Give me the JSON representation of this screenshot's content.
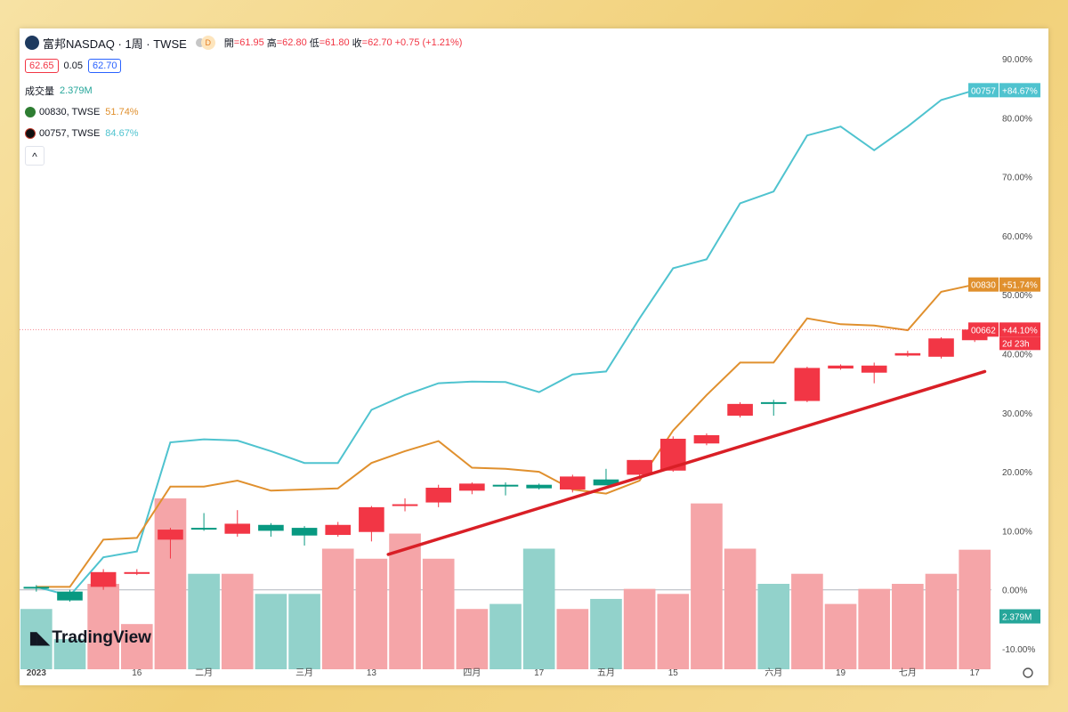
{
  "header": {
    "symbol_name": "富邦NASDAQ · 1周 · TWSE",
    "interval_badge": "D",
    "ohlc": {
      "open_label": "開",
      "open": "=61.95",
      "high_label": "高",
      "high": "=62.80",
      "low_label": "低",
      "low": "=61.80",
      "close_label": "收",
      "close": "=62.70",
      "change": "+0.75 (+1.21%)"
    },
    "bid": "62.65",
    "spread": "0.05",
    "ask": "62.70"
  },
  "legend": {
    "volume_label": "成交量",
    "volume_value": "2.379M",
    "comparisons": [
      {
        "name": "00830, TWSE",
        "value": "51.74%",
        "color": "#e0902e"
      },
      {
        "name": "00757, TWSE",
        "value": "84.67%",
        "color": "#4fc3cf"
      }
    ],
    "collapse_symbol": "^"
  },
  "watermark": "TradingView",
  "colors": {
    "up": "#f23645",
    "down": "#089981",
    "vol_up": "#f5a5a8",
    "vol_down": "#92d2cb",
    "line_00757": "#4fc3cf",
    "line_00830": "#e0902e",
    "trend": "#d91f26"
  },
  "chart_data": {
    "type": "line",
    "y_unit": "%",
    "ylim": [
      -10,
      90
    ],
    "y_ticks": [
      "90.00%",
      "80.00%",
      "70.00%",
      "60.00%",
      "50.00%",
      "40.00%",
      "30.00%",
      "20.00%",
      "10.00%",
      "0.00%",
      "-10.00%"
    ],
    "x_ticks": [
      "2023",
      "16",
      "二月",
      "三月",
      "13",
      "四月",
      "17",
      "五月",
      "15",
      "六月",
      "19",
      "七月",
      "17"
    ],
    "series": [
      {
        "name": "00757",
        "last_label": "+84.67%",
        "values": [
          0.5,
          -1,
          5.5,
          6.5,
          25,
          25.5,
          25.3,
          23.5,
          21.5,
          21.5,
          30.5,
          33,
          35,
          35.3,
          35.2,
          33.5,
          36.5,
          37,
          46,
          54.5,
          56,
          65.5,
          67.5,
          77,
          78.5,
          74.5,
          78.5,
          83,
          84.67
        ]
      },
      {
        "name": "00830",
        "last_label": "+51.74%",
        "values": [
          0.5,
          0.5,
          8.5,
          8.8,
          17.5,
          17.5,
          18.5,
          16.8,
          17,
          17.2,
          21.5,
          23.5,
          25.2,
          20.7,
          20.5,
          20,
          17,
          16.3,
          18.5,
          27,
          33,
          38.5,
          38.5,
          46,
          45,
          44.8,
          44,
          50.5,
          51.74
        ]
      }
    ],
    "candles": {
      "name": "00662",
      "last_label": "+44.10%",
      "countdown": "2d 23h",
      "ohlc": [
        [
          0.5,
          0.8,
          -0.3,
          0.2
        ],
        [
          -0.3,
          0,
          -2,
          -1.8
        ],
        [
          0.5,
          3.5,
          0,
          3
        ],
        [
          3,
          3.5,
          2.5,
          3
        ],
        [
          8.5,
          10.5,
          5.3,
          10.2
        ],
        [
          10.5,
          13,
          10,
          10.2
        ],
        [
          9.5,
          13.5,
          9,
          11.2
        ],
        [
          11,
          11.3,
          9,
          10
        ],
        [
          10.5,
          10.8,
          7.5,
          9.2
        ],
        [
          9.3,
          11.5,
          9,
          11
        ],
        [
          9.8,
          14.2,
          8.2,
          14
        ],
        [
          14.3,
          15.5,
          13.3,
          14.5
        ],
        [
          14.8,
          17.8,
          14,
          17.3
        ],
        [
          16.8,
          18.2,
          16.2,
          18
        ],
        [
          17.8,
          18.2,
          16,
          17.6
        ],
        [
          17.8,
          18,
          17,
          17.2
        ],
        [
          17,
          19.5,
          16.5,
          19.2
        ],
        [
          18.7,
          20.5,
          18.2,
          17.7
        ],
        [
          19.5,
          22,
          19.2,
          22
        ],
        [
          20.2,
          26,
          20,
          25.6
        ],
        [
          24.8,
          26.5,
          24.5,
          26.2
        ],
        [
          29.5,
          31.8,
          29.2,
          31.5
        ],
        [
          31.8,
          32.2,
          29.5,
          31.5
        ],
        [
          32,
          37.8,
          31.8,
          37.6
        ],
        [
          37.5,
          38.2,
          37.3,
          38
        ],
        [
          36.8,
          38.5,
          35,
          38
        ],
        [
          39.7,
          40.5,
          39.5,
          40.1
        ],
        [
          39.5,
          42.8,
          39.2,
          42.6
        ],
        [
          42.3,
          44.3,
          42,
          44.1
        ]
      ]
    },
    "volume": [
      1.2,
      0.6,
      1.7,
      0.9,
      3.4,
      1.9,
      1.9,
      1.5,
      1.5,
      2.4,
      2.2,
      2.7,
      2.2,
      1.2,
      1.3,
      2.4,
      1.2,
      1.4,
      1.6,
      1.5,
      3.3,
      2.4,
      1.7,
      1.9,
      1.3,
      1.6,
      1.7,
      1.9,
      2.379
    ]
  }
}
